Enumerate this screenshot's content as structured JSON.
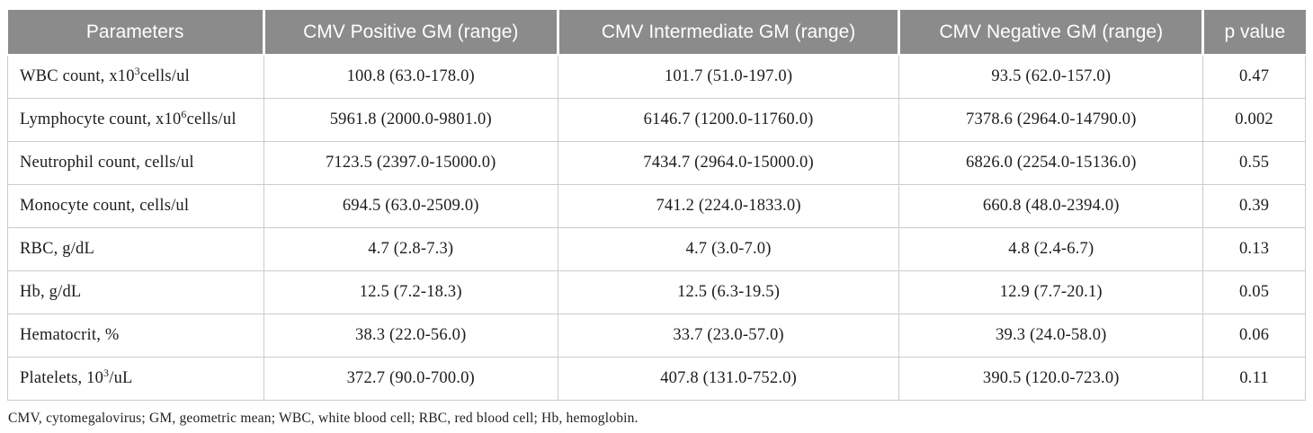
{
  "colors": {
    "header_bg": "#8b8b8b",
    "header_text": "#ffffff",
    "body_border": "#cccccc",
    "body_text": "#1c1c1c"
  },
  "table": {
    "headers": [
      "Parameters",
      "CMV Positive GM (range)",
      "CMV Intermediate GM (range)",
      "CMV Negative GM (range)",
      "p value"
    ],
    "rows": [
      {
        "param_pre": "WBC count, x10",
        "param_sup": "3",
        "param_post": "cells/ul",
        "positive": "100.8 (63.0-178.0)",
        "intermediate": "101.7 (51.0-197.0)",
        "negative": "93.5 (62.0-157.0)",
        "p": "0.47"
      },
      {
        "param_pre": "Lymphocyte count, x10",
        "param_sup": "6",
        "param_post": "cells/ul",
        "positive": "5961.8 (2000.0-9801.0)",
        "intermediate": "6146.7 (1200.0-11760.0)",
        "negative": "7378.6 (2964.0-14790.0)",
        "p": "0.002"
      },
      {
        "param_pre": "Neutrophil count, cells/ul",
        "param_sup": "",
        "param_post": "",
        "positive": "7123.5 (2397.0-15000.0)",
        "intermediate": "7434.7 (2964.0-15000.0)",
        "negative": "6826.0 (2254.0-15136.0)",
        "p": "0.55"
      },
      {
        "param_pre": "Monocyte count, cells/ul",
        "param_sup": "",
        "param_post": "",
        "positive": "694.5 (63.0-2509.0)",
        "intermediate": "741.2 (224.0-1833.0)",
        "negative": "660.8 (48.0-2394.0)",
        "p": "0.39"
      },
      {
        "param_pre": "RBC, g/dL",
        "param_sup": "",
        "param_post": "",
        "positive": "4.7 (2.8-7.3)",
        "intermediate": "4.7 (3.0-7.0)",
        "negative": "4.8 (2.4-6.7)",
        "p": "0.13"
      },
      {
        "param_pre": "Hb, g/dL",
        "param_sup": "",
        "param_post": "",
        "positive": "12.5 (7.2-18.3)",
        "intermediate": "12.5 (6.3-19.5)",
        "negative": "12.9 (7.7-20.1)",
        "p": "0.05"
      },
      {
        "param_pre": "Hematocrit, %",
        "param_sup": "",
        "param_post": "",
        "positive": "38.3 (22.0-56.0)",
        "intermediate": "33.7 (23.0-57.0)",
        "negative": "39.3 (24.0-58.0)",
        "p": "0.06"
      },
      {
        "param_pre": "Platelets, 10",
        "param_sup": "3",
        "param_post": "/uL",
        "positive": "372.7 (90.0-700.0)",
        "intermediate": "407.8 (131.0-752.0)",
        "negative": "390.5 (120.0-723.0)",
        "p": "0.11"
      }
    ]
  },
  "footnote": "CMV, cytomegalovirus; GM, geometric mean; WBC, white blood cell; RBC, red blood cell; Hb, hemoglobin."
}
